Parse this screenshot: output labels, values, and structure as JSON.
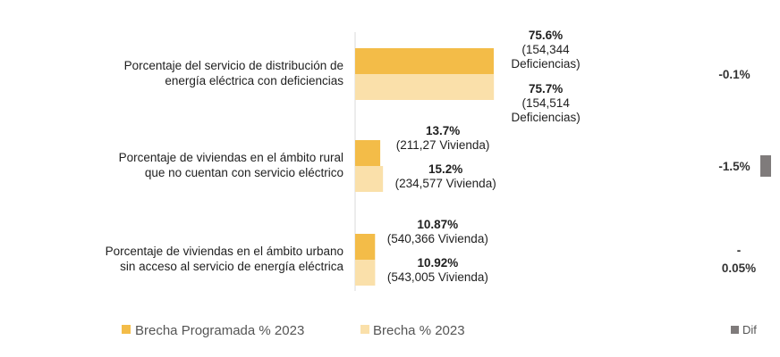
{
  "chart_data": {
    "type": "bar",
    "orientation": "horizontal",
    "categories": [
      [
        "Porcentaje del servicio de distribución de",
        "energía eléctrica con deficiencias"
      ],
      [
        "Porcentaje de viviendas en el ámbito rural",
        "que no cuentan con servicio eléctrico"
      ],
      [
        "Porcentaje de viviendas en el ámbito urbano",
        "sin acceso al servicio de energía eléctrica"
      ]
    ],
    "series": [
      {
        "name": "Brecha Programada % 2023",
        "color": "#F3BC48",
        "values": [
          75.6,
          13.7,
          10.87
        ],
        "labels": [
          "75.6%",
          "13.7%",
          "10.87%"
        ],
        "notes": [
          [
            "(154,344",
            "Deficiencias)"
          ],
          [
            "(211,27 Vivienda)"
          ],
          [
            "(540,366 Vivienda)"
          ]
        ]
      },
      {
        "name": "Brecha % 2023",
        "color": "#FAE0AA",
        "values": [
          75.7,
          15.2,
          10.92
        ],
        "labels": [
          "75.7%",
          "15.2%",
          "10.92%"
        ],
        "notes": [
          [
            "(154,514",
            "Deficiencias)"
          ],
          [
            "(234,577 Vivienda)"
          ],
          [
            "(543,005 Vivienda)"
          ]
        ]
      }
    ],
    "dif": {
      "name": "Dif",
      "color": "#7F7B7B",
      "values": [
        -0.1,
        -1.5,
        -0.05
      ],
      "labels": [
        [
          "-0.1%"
        ],
        [
          "-1.5%"
        ],
        [
          "-",
          "0.05%"
        ]
      ]
    },
    "grid": false,
    "legend": "bottom"
  }
}
